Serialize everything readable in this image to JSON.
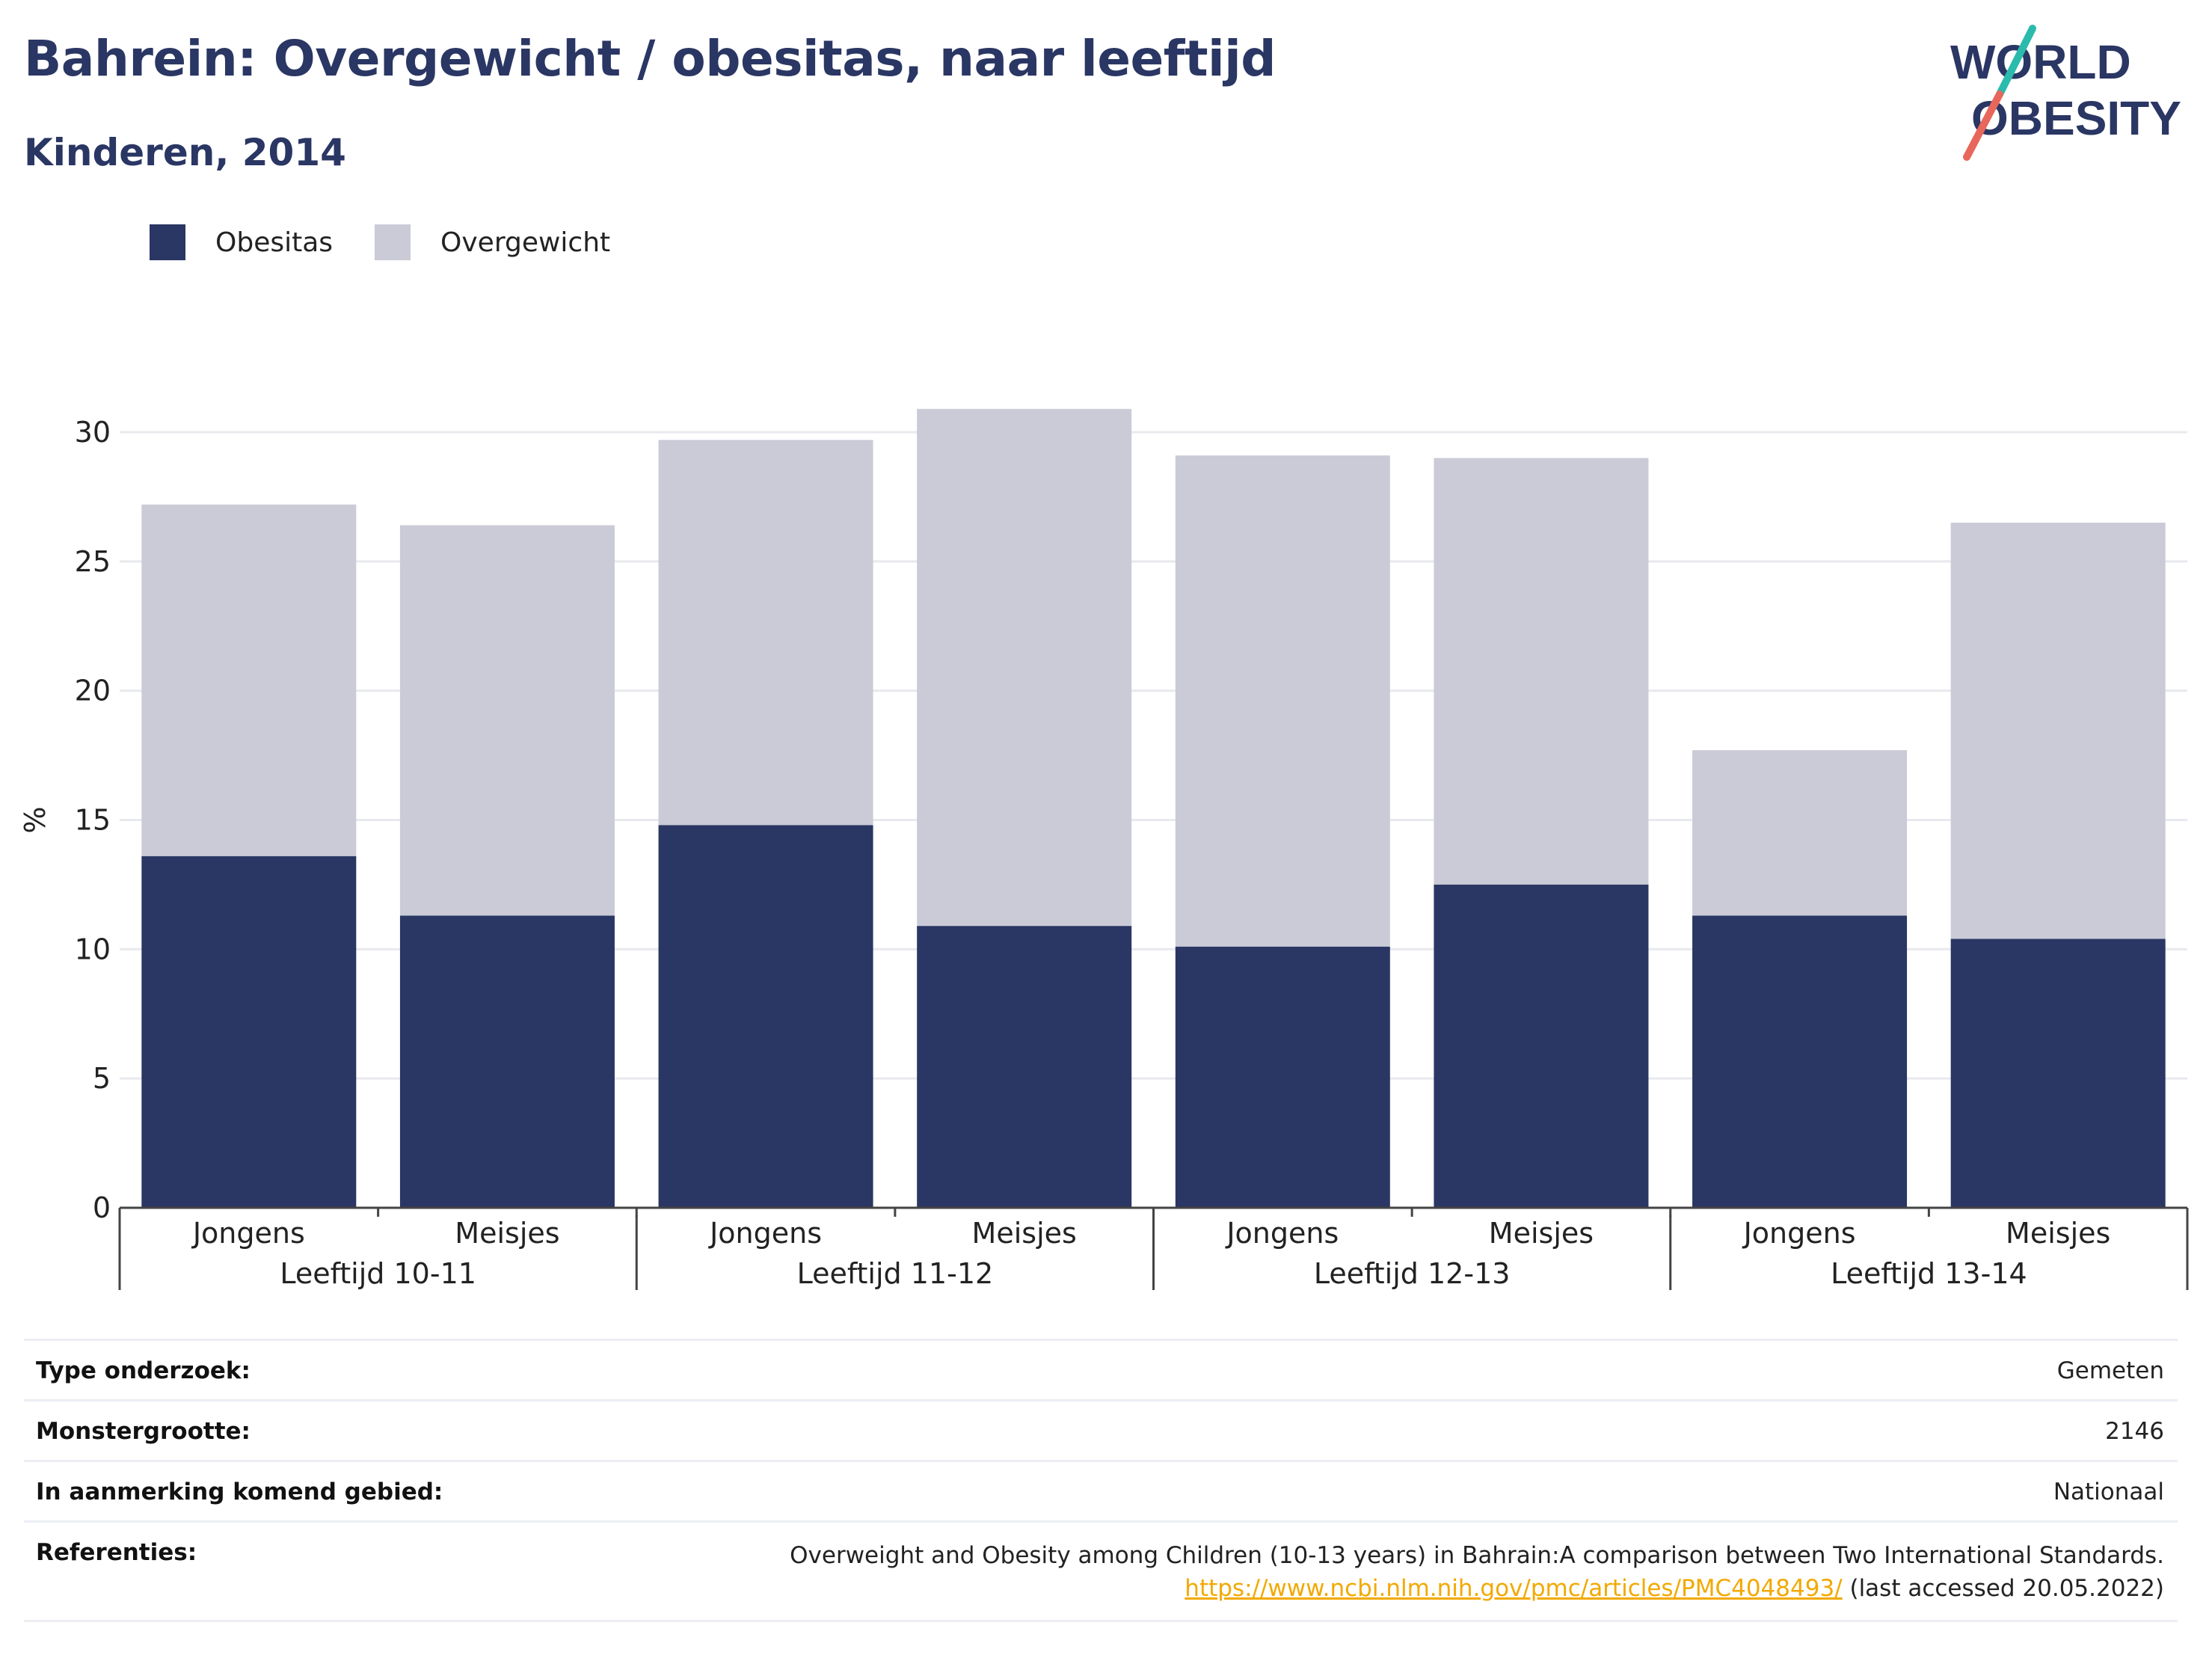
{
  "title": "Bahrein: Overgewicht / obesitas, naar leeftijd",
  "subtitle": "Kinderen, 2014",
  "logo": {
    "line1": "WORLD",
    "line2": "OBESITY"
  },
  "colors": {
    "obesitas": "#2a3663",
    "overgewicht": "#cacbd7",
    "title": "#2a3663",
    "link": "#f2a900",
    "grid": "#e8e9ee",
    "logo_teal": "#2bbbad",
    "logo_coral": "#e8675c"
  },
  "legend": [
    {
      "label": "Obesitas",
      "color": "#2a3663"
    },
    {
      "label": "Overgewicht",
      "color": "#cacbd7"
    }
  ],
  "chart_data": {
    "type": "bar",
    "stacked": true,
    "ylabel": "%",
    "ylim": [
      0,
      30
    ],
    "yticks": [
      0,
      5,
      10,
      15,
      20,
      25,
      30
    ],
    "groups": [
      "Leeftijd 10-11",
      "Leeftijd 11-12",
      "Leeftijd 12-13",
      "Leeftijd 13-14"
    ],
    "categories": [
      "Jongens",
      "Meisjes",
      "Jongens",
      "Meisjes",
      "Jongens",
      "Meisjes",
      "Jongens",
      "Meisjes"
    ],
    "series": [
      {
        "name": "Obesitas",
        "values": [
          13.6,
          11.3,
          14.8,
          10.9,
          10.1,
          12.5,
          11.3,
          10.4
        ]
      },
      {
        "name": "Overgewicht",
        "values": [
          13.6,
          15.1,
          14.9,
          20.0,
          19.0,
          16.5,
          6.4,
          16.1
        ]
      }
    ],
    "legend_position": "top-left",
    "grid": true
  },
  "info": {
    "type_label": "Type onderzoek:",
    "type_value": "Gemeten",
    "sample_label": "Monstergrootte:",
    "sample_value": "2146",
    "area_label": "In aanmerking komend gebied:",
    "area_value": "Nationaal",
    "ref_label": "Referenties:",
    "ref_text": "Overweight and Obesity among Children (10-13 years) in Bahrain:A comparison between Two International Standards.",
    "ref_link": "https://www.ncbi.nlm.nih.gov/pmc/articles/PMC4048493/",
    "ref_suffix": " (last accessed 20.05.2022)"
  }
}
